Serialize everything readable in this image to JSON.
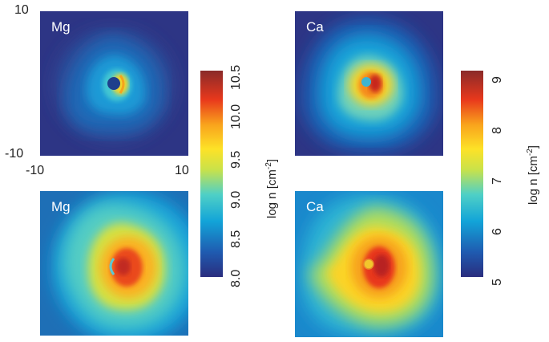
{
  "panels": {
    "tl": {
      "element": "Mg"
    },
    "bl": {
      "element": "Mg"
    },
    "tr": {
      "element": "Ca"
    },
    "br": {
      "element": "Ca"
    }
  },
  "axes": {
    "y_top": "10",
    "y_bottom": "-10",
    "x_left": "-10",
    "x_right": "10"
  },
  "colorbar_left": {
    "label_prefix": "log n [cm",
    "label_sup": "-2",
    "label_suffix": "]",
    "ticks": [
      "8.0",
      "8.5",
      "9.0",
      "9.5",
      "10.0",
      "10.5"
    ]
  },
  "colorbar_right": {
    "label_prefix": "log n [cm",
    "label_sup": "-2",
    "label_suffix": "]",
    "ticks": [
      "5",
      "6",
      "7",
      "8",
      "9"
    ]
  },
  "colormap": [
    "#2a2d7e",
    "#1f5bb0",
    "#12a4d8",
    "#4fd0c6",
    "#c9e24a",
    "#fde227",
    "#f9a21c",
    "#e8381c",
    "#b31e23"
  ]
}
